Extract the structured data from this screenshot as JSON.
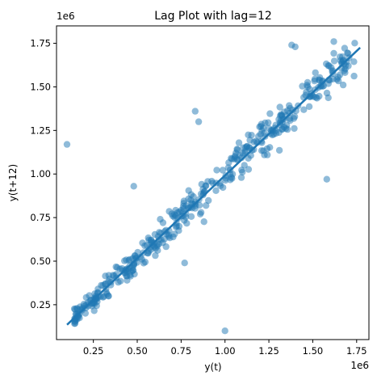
{
  "chart_data": {
    "type": "scatter",
    "title": "Lag Plot with lag=12",
    "xlabel": "y(t)",
    "ylabel": "y(t+12)",
    "x_offset_label": "1e6",
    "y_offset_label": "1e6",
    "xlim": [
      0.04,
      1.82
    ],
    "ylim": [
      0.05,
      1.85
    ],
    "x_ticks": [
      0.25,
      0.5,
      0.75,
      1.0,
      1.25,
      1.5,
      1.75
    ],
    "x_tick_labels": [
      "0.25",
      "0.50",
      "0.75",
      "1.00",
      "1.25",
      "1.50",
      "1.75"
    ],
    "y_ticks": [
      0.25,
      0.5,
      0.75,
      1.0,
      1.25,
      1.5,
      1.75
    ],
    "y_tick_labels": [
      "0.25",
      "0.50",
      "0.75",
      "1.00",
      "1.25",
      "1.50",
      "1.75"
    ],
    "grid": false,
    "point_color": "#1f77b4",
    "point_alpha": 0.5,
    "regression_line": {
      "x": [
        0.1,
        1.77
      ],
      "y": [
        0.135,
        1.725
      ],
      "color": "#1f77b4"
    },
    "outliers": [
      {
        "x": 0.1,
        "y": 1.17
      },
      {
        "x": 0.48,
        "y": 0.93
      },
      {
        "x": 1.0,
        "y": 0.1
      },
      {
        "x": 1.58,
        "y": 0.97
      },
      {
        "x": 0.77,
        "y": 0.49
      },
      {
        "x": 0.83,
        "y": 1.36
      },
      {
        "x": 0.85,
        "y": 1.3
      },
      {
        "x": 1.38,
        "y": 1.74
      },
      {
        "x": 1.4,
        "y": 1.73
      },
      {
        "x": 1.62,
        "y": 1.76
      }
    ],
    "bulk": {
      "n": 430,
      "x_range": [
        0.14,
        1.74
      ],
      "slope": 0.952,
      "intercept": 0.04,
      "spread": 0.065
    }
  }
}
